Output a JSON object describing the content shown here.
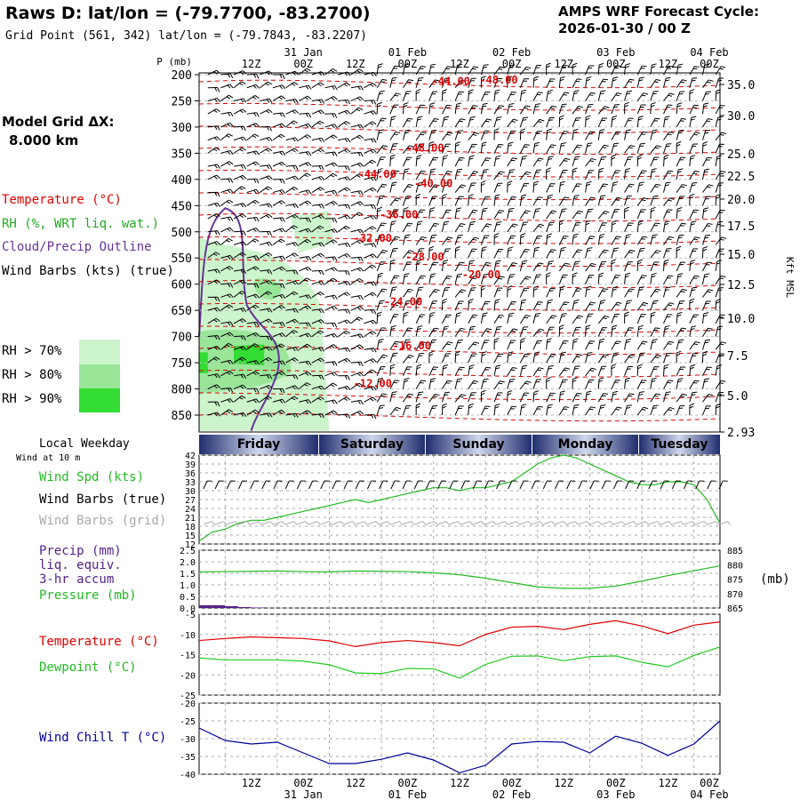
{
  "header": {
    "title": "Raws D:  lat/lon = (-79.7700, -83.2700)",
    "gridpoint": "Grid Point (561, 342) lat/lon = (-79.7843, -83.2207)",
    "cycle_line1": "AMPS WRF Forecast Cycle:",
    "cycle_line2": "2026-01-30 / 00  Z"
  },
  "model_grid": {
    "line1": "Model Grid ΔX:",
    "line2": "8.000 km"
  },
  "legend": {
    "temperature": "Temperature (°C)",
    "rh": "RH (%, WRT liq. wat.)",
    "cloud": "Cloud/Precip Outline",
    "wind": "Wind Barbs (kts) (true)",
    "rh70": "RH > 70%",
    "rh80": "RH > 80%",
    "rh90": "RH > 90%"
  },
  "colors": {
    "temp": "#e00000",
    "rh70": "#ccf5cc",
    "rh80": "#99e699",
    "rh90": "#33dd33",
    "cloud": "#663399",
    "wind_spd": "#22bb22",
    "dewpoint": "#22cc22",
    "windchill": "#000099",
    "precip": "#552288",
    "barb_grid": "#aaaaaa"
  },
  "time_axis": {
    "top_dates": [
      "31 Jan",
      "01 Feb",
      "02 Feb",
      "03 Feb",
      "04 Feb"
    ],
    "hour_labels": [
      "12Z",
      "00Z",
      "12Z",
      "00Z",
      "12Z",
      "00Z",
      "12Z",
      "00Z",
      "12Z",
      "00Z"
    ],
    "bottom_dates": [
      "31 Jan",
      "01 Feb",
      "02 Feb",
      "03 Feb",
      "04 Feb"
    ]
  },
  "weekday": {
    "label": "Local Weekday",
    "wind_note": "Wind at 10 m",
    "days": [
      "Friday",
      "Saturday",
      "Sunday",
      "Monday",
      "Tuesday"
    ]
  },
  "panel_labels": {
    "wind_spd": "Wind Spd (kts)",
    "wind_barbs": "Wind Barbs (true)",
    "wind_barbs_grid": "Wind Barbs (grid)",
    "precip1": "Precip (mm)",
    "precip2": "liq. equiv.",
    "precip3": "3-hr accum",
    "pressure": "Pressure (mb)",
    "pressure_unit": "(mb)",
    "temperature": "Temperature (°C)",
    "dewpoint": "Dewpoint (°C)",
    "windchill": "Wind Chill T (°C)"
  },
  "chart_data": [
    {
      "type": "heatmap",
      "name": "cross-section",
      "ylabel": "P (mb)",
      "y2label": "Kft MSL",
      "x_hours": [
        0,
        120
      ],
      "p_levels": [
        200,
        250,
        300,
        350,
        400,
        450,
        500,
        550,
        600,
        650,
        700,
        750,
        800,
        850
      ],
      "kft_ticks": [
        "35.0",
        "30.0",
        "25.0",
        "22.5",
        "20.0",
        "17.5",
        "15.0",
        "12.5",
        "10.0",
        "7.5",
        "5.0",
        "2.93"
      ],
      "kft_levels": [
        35.0,
        30.0,
        25.0,
        22.5,
        20.0,
        17.5,
        15.0,
        12.5,
        10.0,
        7.5,
        5.0,
        2.93
      ],
      "isotherm_labels": [
        {
          "text": "-44.00",
          "t": 58,
          "p": 213
        },
        {
          "text": "-48.00",
          "t": 69,
          "p": 210
        },
        {
          "text": "-48.00",
          "t": 52,
          "p": 340
        },
        {
          "text": "-44.00",
          "t": 41,
          "p": 390
        },
        {
          "text": "-40.00",
          "t": 54,
          "p": 408
        },
        {
          "text": "-36.00",
          "t": 46,
          "p": 467
        },
        {
          "text": "-32.00",
          "t": 40,
          "p": 512
        },
        {
          "text": "-28.00",
          "t": 52,
          "p": 548
        },
        {
          "text": "-20.00",
          "t": 65,
          "p": 582
        },
        {
          "text": "-24.00",
          "t": 47,
          "p": 634
        },
        {
          "text": "-16.00",
          "t": 49,
          "p": 718
        },
        {
          "text": "-12.00",
          "t": 40,
          "p": 790
        }
      ]
    },
    {
      "type": "line",
      "name": "wind_speed",
      "ylim": [
        12,
        42
      ],
      "yticks": [
        12,
        15,
        18,
        21,
        24,
        27,
        30,
        33,
        36,
        39,
        42
      ],
      "series": [
        {
          "name": "Wind Spd (kts)",
          "x": [
            0,
            3,
            6,
            9,
            12,
            15,
            18,
            21,
            24,
            27,
            30,
            33,
            36,
            39,
            42,
            45,
            48,
            51,
            54,
            57,
            60,
            63,
            66,
            69,
            72,
            75,
            78,
            81,
            84,
            87,
            90,
            93,
            96,
            99,
            102,
            105,
            108,
            111,
            114,
            117,
            120
          ],
          "values": [
            13,
            16,
            17,
            19,
            20,
            20,
            21,
            22,
            23,
            24,
            25,
            26,
            27,
            26,
            27,
            28,
            29,
            30,
            31,
            31,
            30,
            31,
            31,
            32,
            33,
            36,
            39,
            41,
            42,
            41,
            39,
            37,
            35,
            33,
            32,
            32,
            33,
            33,
            32,
            27,
            19
          ]
        }
      ]
    },
    {
      "type": "line",
      "name": "precip_pressure",
      "ylim": [
        0.0,
        2.5
      ],
      "yticks": [
        0.0,
        0.5,
        1.0,
        1.5,
        2.0,
        2.5
      ],
      "y2lim": [
        865,
        885
      ],
      "y2ticks": [
        865,
        870,
        875,
        880,
        885
      ],
      "series": [
        {
          "name": "Pressure (mb)",
          "axis": "right",
          "x": [
            0,
            6,
            12,
            18,
            24,
            30,
            36,
            42,
            48,
            54,
            60,
            66,
            72,
            78,
            84,
            90,
            96,
            102,
            108,
            114,
            120
          ],
          "values": [
            877.5,
            877.6,
            877.7,
            877.8,
            877.6,
            877.5,
            877.8,
            877.7,
            877.6,
            877.2,
            876.5,
            875.3,
            873.8,
            872.3,
            871.8,
            871.8,
            872.6,
            874.3,
            876.2,
            877.9,
            879.6
          ]
        },
        {
          "name": "Precip (mm)",
          "type": "bar",
          "x": [
            1.5,
            4.5,
            7.5,
            10.5,
            13.5
          ],
          "values": [
            0.12,
            0.12,
            0.08,
            0.04,
            0.02
          ]
        }
      ]
    },
    {
      "type": "line",
      "name": "temp_dewpoint",
      "ylim": [
        -25,
        -5
      ],
      "yticks": [
        -25,
        -20,
        -15,
        -10,
        -5
      ],
      "series": [
        {
          "name": "Temperature (°C)",
          "x": [
            0,
            6,
            12,
            18,
            24,
            30,
            36,
            42,
            48,
            54,
            60,
            66,
            72,
            78,
            84,
            90,
            96,
            102,
            108,
            114,
            120
          ],
          "values": [
            -11.5,
            -11.0,
            -10.6,
            -10.8,
            -11.0,
            -11.6,
            -13.0,
            -12.0,
            -11.5,
            -12.0,
            -12.8,
            -10.0,
            -8.2,
            -8.0,
            -8.8,
            -7.5,
            -6.6,
            -7.9,
            -9.8,
            -7.7,
            -6.9
          ]
        },
        {
          "name": "Dewpoint (°C)",
          "x": [
            0,
            6,
            12,
            18,
            24,
            30,
            36,
            42,
            48,
            54,
            60,
            66,
            72,
            78,
            84,
            90,
            96,
            102,
            108,
            114,
            120
          ],
          "values": [
            -15.8,
            -16.3,
            -16.3,
            -16.3,
            -16.6,
            -17.5,
            -19.5,
            -19.7,
            -18.4,
            -18.5,
            -20.8,
            -17.4,
            -15.4,
            -15.3,
            -16.5,
            -15.5,
            -15.3,
            -16.9,
            -18.0,
            -15.2,
            -13.1
          ]
        }
      ]
    },
    {
      "type": "line",
      "name": "wind_chill",
      "ylim": [
        -40,
        -20
      ],
      "yticks": [
        -40,
        -35,
        -30,
        -25,
        -20
      ],
      "series": [
        {
          "name": "Wind Chill T (°C)",
          "x": [
            0,
            6,
            12,
            18,
            24,
            30,
            36,
            42,
            48,
            54,
            60,
            66,
            72,
            78,
            84,
            90,
            96,
            102,
            108,
            114,
            120
          ],
          "values": [
            -27.0,
            -30.5,
            -31.5,
            -31.0,
            -34.0,
            -37.0,
            -37.0,
            -35.8,
            -34.0,
            -36.0,
            -39.6,
            -37.5,
            -31.5,
            -30.8,
            -31.0,
            -34.0,
            -29.3,
            -31.3,
            -34.7,
            -31.5,
            -25.0
          ]
        }
      ]
    }
  ]
}
